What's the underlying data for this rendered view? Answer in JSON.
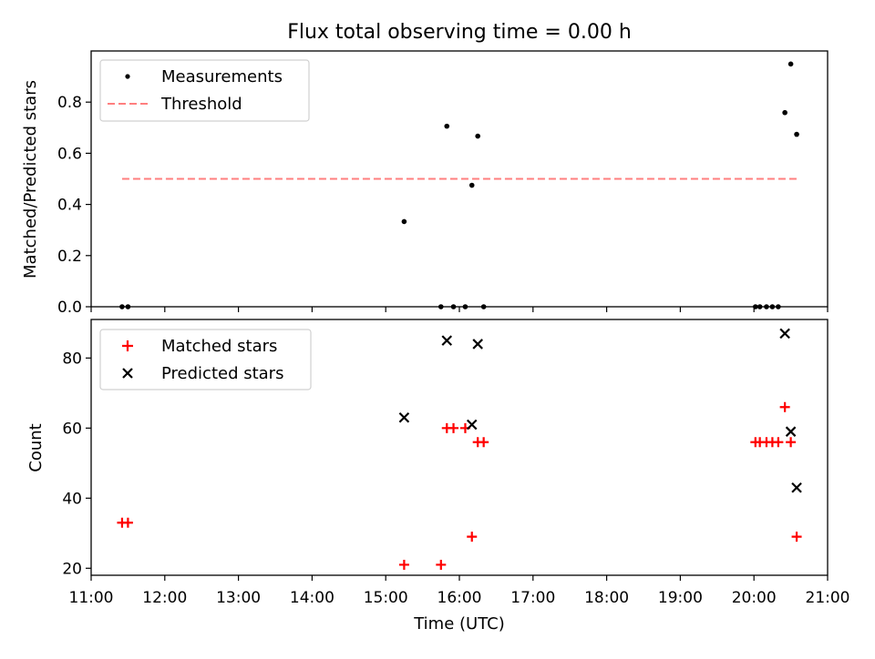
{
  "title": "Flux total observing time = 0.00 h",
  "colors": {
    "threshold": "#ff7f7f",
    "measurement": "#000000",
    "matched": "#ff0000",
    "predicted": "#000000"
  },
  "chart_data": [
    {
      "type": "scatter",
      "ylabel": "Matched/Predicted stars",
      "xlim": [
        11.0,
        21.0
      ],
      "ylim": [
        0.0,
        1.0
      ],
      "yticks": [
        0.0,
        0.2,
        0.4,
        0.6,
        0.8
      ],
      "ytick_labels": [
        "0.0",
        "0.2",
        "0.4",
        "0.6",
        "0.8"
      ],
      "legend": {
        "placement": "upper-left",
        "measurements": "Measurements",
        "threshold": "Threshold"
      },
      "threshold": {
        "value": 0.5,
        "x_start": 11.42,
        "x_end": 20.58
      },
      "series": [
        {
          "name": "Measurements",
          "x": [
            11.42,
            11.5,
            15.25,
            15.75,
            15.83,
            15.92,
            16.08,
            16.17,
            16.25,
            16.33,
            20.02,
            20.08,
            20.17,
            20.25,
            20.33,
            20.42,
            20.5,
            20.58
          ],
          "y": [
            0.0,
            0.0,
            0.333,
            0.0,
            0.706,
            0.0,
            0.0,
            0.475,
            0.667,
            0.0,
            0.0,
            0.0,
            0.0,
            0.0,
            0.0,
            0.759,
            0.949,
            0.674
          ]
        }
      ]
    },
    {
      "type": "scatter",
      "ylabel": "Count",
      "xlabel": "Time (UTC)",
      "xlim": [
        11.0,
        21.0
      ],
      "ylim": [
        18.0,
        91.0
      ],
      "xticks": [
        11,
        12,
        13,
        14,
        15,
        16,
        17,
        18,
        19,
        20,
        21
      ],
      "xtick_labels": [
        "11:00",
        "12:00",
        "13:00",
        "14:00",
        "15:00",
        "16:00",
        "17:00",
        "18:00",
        "19:00",
        "20:00",
        "21:00"
      ],
      "yticks": [
        20,
        40,
        60,
        80
      ],
      "ytick_labels": [
        "20",
        "40",
        "60",
        "80"
      ],
      "legend": {
        "placement": "upper-left",
        "matched": "Matched stars",
        "predicted": "Predicted stars"
      },
      "series": [
        {
          "name": "Matched stars",
          "x": [
            11.42,
            11.5,
            15.25,
            15.75,
            15.83,
            15.92,
            16.08,
            16.17,
            16.25,
            16.33,
            20.02,
            20.08,
            20.17,
            20.25,
            20.33,
            20.42,
            20.5,
            20.58
          ],
          "y": [
            33,
            33,
            21,
            21,
            60,
            60,
            60,
            29,
            56,
            56,
            56,
            56,
            56,
            56,
            56,
            66,
            56,
            29
          ]
        },
        {
          "name": "Predicted stars",
          "x": [
            15.25,
            15.83,
            16.17,
            16.25,
            20.42,
            20.5,
            20.58
          ],
          "y": [
            63,
            85,
            61,
            84,
            87,
            59,
            43
          ]
        }
      ]
    }
  ]
}
